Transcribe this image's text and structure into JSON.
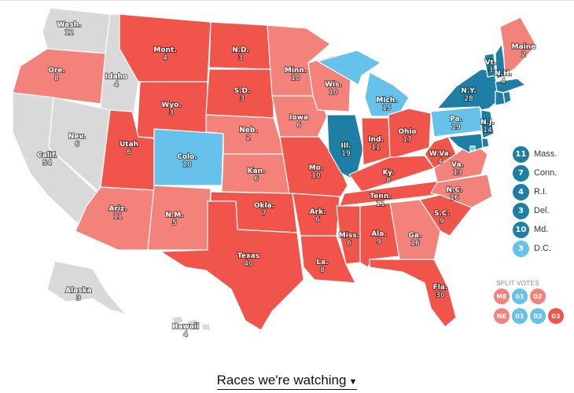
{
  "colors": {
    "solid_d": "#1f7ea3",
    "lean_d": "#66c2ea",
    "lean_r": "#f3827b",
    "solid_r": "#f0544a",
    "tossup": "#d9d9d9"
  },
  "states": [
    {
      "name": "Wash.",
      "ev": "12",
      "cat": "tossup"
    },
    {
      "name": "Ore.",
      "ev": "8",
      "cat": "lean_r"
    },
    {
      "name": "Calif.",
      "ev": "54",
      "cat": "tossup"
    },
    {
      "name": "Idaho",
      "ev": "4",
      "cat": "tossup"
    },
    {
      "name": "Nev.",
      "ev": "6",
      "cat": "tossup"
    },
    {
      "name": "Mont.",
      "ev": "4",
      "cat": "solid_r"
    },
    {
      "name": "Wyo.",
      "ev": "3",
      "cat": "solid_r"
    },
    {
      "name": "Utah",
      "ev": "6",
      "cat": "solid_r"
    },
    {
      "name": "Ariz.",
      "ev": "11",
      "cat": "lean_r"
    },
    {
      "name": "Colo.",
      "ev": "10",
      "cat": "lean_d"
    },
    {
      "name": "N.M.",
      "ev": "5",
      "cat": "lean_r"
    },
    {
      "name": "N.D.",
      "ev": "3",
      "cat": "solid_r"
    },
    {
      "name": "S.D.",
      "ev": "3",
      "cat": "solid_r"
    },
    {
      "name": "Neb.",
      "ev": "2",
      "cat": "lean_r"
    },
    {
      "name": "Kan.",
      "ev": "6",
      "cat": "lean_r"
    },
    {
      "name": "Okla.",
      "ev": "7",
      "cat": "solid_r"
    },
    {
      "name": "Texas",
      "ev": "40",
      "cat": "solid_r"
    },
    {
      "name": "Minn.",
      "ev": "10",
      "cat": "lean_r"
    },
    {
      "name": "Iowa",
      "ev": "6",
      "cat": "lean_r"
    },
    {
      "name": "Mo.",
      "ev": "10",
      "cat": "solid_r"
    },
    {
      "name": "Ark.",
      "ev": "6",
      "cat": "solid_r"
    },
    {
      "name": "La.",
      "ev": "8",
      "cat": "solid_r"
    },
    {
      "name": "Wis.",
      "ev": "10",
      "cat": "lean_r"
    },
    {
      "name": "Ill.",
      "ev": "19",
      "cat": "solid_d"
    },
    {
      "name": "Mich.",
      "ev": "15",
      "cat": "lean_d"
    },
    {
      "name": "Ind.",
      "ev": "11",
      "cat": "solid_r"
    },
    {
      "name": "Ohio",
      "ev": "17",
      "cat": "solid_r"
    },
    {
      "name": "Ky.",
      "ev": "8",
      "cat": "solid_r"
    },
    {
      "name": "Tenn.",
      "ev": "11",
      "cat": "solid_r"
    },
    {
      "name": "Miss.",
      "ev": "6",
      "cat": "solid_r"
    },
    {
      "name": "Ala.",
      "ev": "9",
      "cat": "solid_r"
    },
    {
      "name": "Ga.",
      "ev": "16",
      "cat": "lean_r"
    },
    {
      "name": "Fla.",
      "ev": "30",
      "cat": "solid_r"
    },
    {
      "name": "S.C.",
      "ev": "9",
      "cat": "solid_r"
    },
    {
      "name": "N.C.",
      "ev": "16",
      "cat": "lean_r"
    },
    {
      "name": "Va.",
      "ev": "13",
      "cat": "lean_r"
    },
    {
      "name": "W.Va.",
      "ev": "4",
      "cat": "solid_r"
    },
    {
      "name": "Pa.",
      "ev": "19",
      "cat": "lean_d"
    },
    {
      "name": "N.Y.",
      "ev": "28",
      "cat": "solid_d"
    },
    {
      "name": "N.J.",
      "ev": "14",
      "cat": "solid_d"
    },
    {
      "name": "Vt.",
      "ev": "3",
      "cat": "solid_d"
    },
    {
      "name": "N.H.",
      "ev": "4",
      "cat": "solid_d"
    },
    {
      "name": "Maine",
      "ev": "2",
      "cat": "lean_r"
    },
    {
      "name": "Alaska",
      "ev": "3",
      "cat": "tossup"
    },
    {
      "name": "Hawaii",
      "ev": "4",
      "cat": "tossup"
    }
  ],
  "northeast_legend": [
    {
      "ev": "11",
      "name": "Mass.",
      "cat": "solid_d"
    },
    {
      "ev": "7",
      "name": "Conn.",
      "cat": "solid_d"
    },
    {
      "ev": "4",
      "name": "R.I.",
      "cat": "solid_d"
    },
    {
      "ev": "3",
      "name": "Del.",
      "cat": "solid_d"
    },
    {
      "ev": "10",
      "name": "Md.",
      "cat": "solid_d"
    },
    {
      "ev": "3",
      "name": "D.C.",
      "cat": "lean_d"
    }
  ],
  "split_votes": {
    "title": "SPLIT VOTES",
    "rows": [
      [
        {
          "label": "ME",
          "cat": "lean_r"
        },
        {
          "label": "01",
          "cat": "lean_d"
        },
        {
          "label": "02",
          "cat": "lean_r"
        }
      ],
      [
        {
          "label": "NE",
          "cat": "lean_r"
        },
        {
          "label": "01",
          "cat": "lean_d"
        },
        {
          "label": "02",
          "cat": "lean_d"
        },
        {
          "label": "03",
          "cat": "solid_r"
        }
      ]
    ]
  },
  "races_button": {
    "label": "Races we're watching",
    "caret": "▼"
  }
}
